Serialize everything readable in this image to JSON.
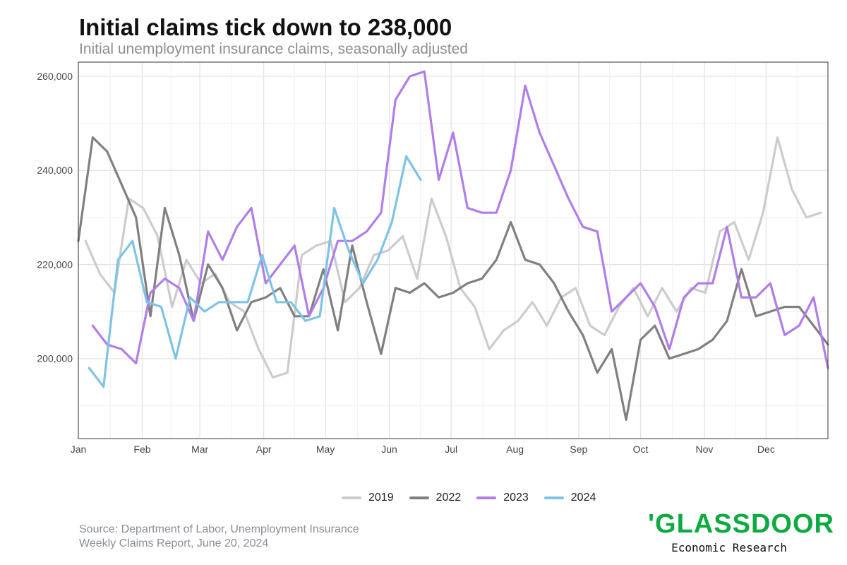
{
  "title": "Initial claims tick down to 238,000",
  "subtitle": "Initial unemployment insurance claims, seasonally adjusted",
  "source": {
    "line1": "Source: Department of Labor, Unemployment Insurance",
    "line2": "Weekly Claims Report, June 20, 2024"
  },
  "logo": {
    "wordmark": "'GLASSDOOR",
    "subtitle": "Economic Research"
  },
  "chart_data": {
    "type": "line",
    "ylim": [
      183000,
      263000
    ],
    "y_ticks": [
      200000,
      220000,
      240000,
      260000
    ],
    "y_tick_labels": [
      "200,000",
      "220,000",
      "240,000",
      "260,000"
    ],
    "x_unit": "week of year",
    "xlim": [
      0,
      52
    ],
    "month_ticks": [
      {
        "label": "Jan",
        "week": 0
      },
      {
        "label": "Feb",
        "week": 4.43
      },
      {
        "label": "Mar",
        "week": 8.43
      },
      {
        "label": "Apr",
        "week": 12.86
      },
      {
        "label": "May",
        "week": 17.14
      },
      {
        "label": "Jun",
        "week": 21.57
      },
      {
        "label": "Jul",
        "week": 25.86
      },
      {
        "label": "Aug",
        "week": 30.29
      },
      {
        "label": "Sep",
        "week": 34.71
      },
      {
        "label": "Oct",
        "week": 39
      },
      {
        "label": "Nov",
        "week": 43.43
      },
      {
        "label": "Dec",
        "week": 47.71
      }
    ],
    "grid": true,
    "legend_position": "bottom",
    "series": [
      {
        "name": "2019",
        "color": "#cccccc",
        "x": [
          0.5,
          1.5,
          2.5,
          3.5,
          4.5,
          5.5,
          6.5,
          7.5,
          8.5,
          9.5,
          10.5,
          11.5,
          12.5,
          13.5,
          14.5,
          15.5,
          16.5,
          17.5,
          18.5,
          19.5,
          20.5,
          21.5,
          22.5,
          23.5,
          24.5,
          25.5,
          26.5,
          27.5,
          28.5,
          29.5,
          30.5,
          31.5,
          32.5,
          33.5,
          34.5,
          35.5,
          36.5,
          37.5,
          38.5,
          39.5,
          40.5,
          41.5,
          42.5,
          43.5,
          44.5,
          45.5,
          46.5,
          47.5,
          48.5,
          49.5,
          50.5,
          51.5
        ],
        "values": [
          225000,
          218000,
          214000,
          234000,
          232000,
          226000,
          211000,
          221000,
          216000,
          218000,
          212000,
          210000,
          202000,
          196000,
          197000,
          222000,
          224000,
          225000,
          212000,
          215000,
          222000,
          223000,
          226000,
          217000,
          234000,
          226000,
          215000,
          211000,
          202000,
          206000,
          208000,
          212000,
          207000,
          213000,
          215000,
          207000,
          205000,
          211000,
          215000,
          209000,
          215000,
          210000,
          215000,
          214000,
          227000,
          229000,
          221000,
          231000,
          247000,
          236000,
          230000,
          231000
        ]
      },
      {
        "name": "2022",
        "color": "#808080",
        "x": [
          0,
          1,
          2,
          3,
          4,
          5,
          6,
          7,
          8,
          9,
          10,
          11,
          12,
          13,
          14,
          15,
          16,
          17,
          18,
          19,
          20,
          21,
          22,
          23,
          24,
          25,
          26,
          27,
          28,
          29,
          30,
          31,
          32,
          33,
          34,
          35,
          36,
          37,
          38,
          39,
          40,
          41,
          42,
          43,
          44,
          45,
          46,
          47,
          48,
          49,
          50,
          51,
          52
        ],
        "values": [
          225000,
          247000,
          244000,
          237000,
          230000,
          209000,
          232000,
          222000,
          208000,
          220000,
          215000,
          206000,
          212000,
          213000,
          215000,
          209000,
          209000,
          219000,
          206000,
          224000,
          212000,
          201000,
          215000,
          214000,
          216000,
          213000,
          214000,
          216000,
          217000,
          221000,
          229000,
          221000,
          220000,
          216000,
          210000,
          205000,
          197000,
          202000,
          187000,
          204000,
          207000,
          200000,
          201000,
          202000,
          204000,
          208000,
          219000,
          209000,
          210000,
          211000,
          211000,
          207000,
          203000
        ]
      },
      {
        "name": "2023",
        "color": "#b07ee8",
        "x": [
          1,
          2,
          3,
          4,
          5,
          6,
          7,
          8,
          9,
          10,
          11,
          12,
          13,
          14,
          15,
          16,
          17,
          18,
          19,
          20,
          21,
          22,
          23,
          24,
          25,
          26,
          27,
          28,
          29,
          30,
          31,
          32,
          33,
          34,
          35,
          36,
          37,
          38,
          39,
          40,
          41,
          42,
          43,
          44,
          45,
          46,
          47,
          48,
          49,
          50,
          51,
          52
        ],
        "values": [
          207000,
          203000,
          202000,
          199000,
          214000,
          217000,
          215000,
          208000,
          227000,
          221000,
          228000,
          232000,
          216000,
          220000,
          224000,
          209000,
          215000,
          225000,
          225000,
          227000,
          231000,
          255000,
          260000,
          261000,
          238000,
          248000,
          232000,
          231000,
          231000,
          240000,
          258000,
          248000,
          241000,
          234000,
          228000,
          227000,
          210000,
          213000,
          216000,
          211000,
          202000,
          213000,
          216000,
          216000,
          228000,
          213000,
          213000,
          216000,
          205000,
          207000,
          213000,
          198000
        ]
      },
      {
        "name": "2024",
        "color": "#7ec3e6",
        "x": [
          0.75,
          1.75,
          2.75,
          3.75,
          4.75,
          5.75,
          6.75,
          7.75,
          8.75,
          9.75,
          10.75,
          11.75,
          12.75,
          13.75,
          14.75,
          15.75,
          16.75,
          17.75,
          18.75,
          19.75,
          20.75,
          21.75,
          22.75,
          23.75
        ],
        "values": [
          198000,
          194000,
          221000,
          225000,
          212000,
          211000,
          200000,
          213000,
          210000,
          212000,
          212000,
          212000,
          222000,
          212000,
          212000,
          208000,
          209000,
          232000,
          223000,
          216000,
          221000,
          229000,
          243000,
          238000
        ]
      }
    ]
  }
}
